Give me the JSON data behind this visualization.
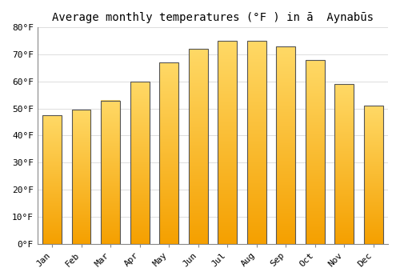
{
  "title": "Average monthly temperatures (°F ) in ā  Aynabūs",
  "months": [
    "Jan",
    "Feb",
    "Mar",
    "Apr",
    "May",
    "Jun",
    "Jul",
    "Aug",
    "Sep",
    "Oct",
    "Nov",
    "Dec"
  ],
  "values": [
    47.5,
    49.5,
    53.0,
    60.0,
    67.0,
    72.0,
    75.0,
    75.0,
    73.0,
    68.0,
    59.0,
    51.0
  ],
  "bar_color_top": "#FFD966",
  "bar_color_bottom": "#F5A000",
  "bar_edge_color": "#555555",
  "ylim": [
    0,
    80
  ],
  "yticks": [
    0,
    10,
    20,
    30,
    40,
    50,
    60,
    70,
    80
  ],
  "ytick_labels": [
    "0°F",
    "10°F",
    "20°F",
    "30°F",
    "40°F",
    "50°F",
    "60°F",
    "70°F",
    "80°F"
  ],
  "background_color": "#FFFFFF",
  "grid_color": "#DDDDDD",
  "title_fontsize": 10,
  "tick_fontsize": 8,
  "font_family": "monospace"
}
